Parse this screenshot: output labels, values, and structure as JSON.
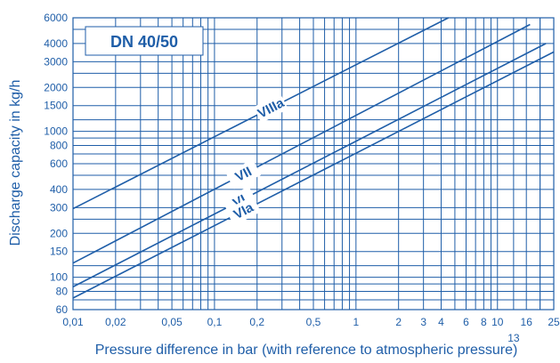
{
  "chart_data": {
    "type": "line",
    "title": "DN 40/50",
    "xlabel": "Pressure difference in bar (with reference to atmospheric pressure)",
    "ylabel": "Discharge capacity in kg/h",
    "x_scale": "log",
    "y_scale": "log",
    "xlim": [
      0.01,
      25
    ],
    "ylim": [
      60,
      6000
    ],
    "grid": true,
    "x_ticks": [
      {
        "value": 0.01,
        "label": "0,01"
      },
      {
        "value": 0.02,
        "label": "0,02"
      },
      {
        "value": 0.05,
        "label": "0,05"
      },
      {
        "value": 0.1,
        "label": "0,1"
      },
      {
        "value": 0.2,
        "label": "0,2"
      },
      {
        "value": 0.5,
        "label": "0,5"
      },
      {
        "value": 1,
        "label": "1"
      },
      {
        "value": 2,
        "label": "2"
      },
      {
        "value": 3,
        "label": "3"
      },
      {
        "value": 4,
        "label": "4"
      },
      {
        "value": 6,
        "label": "6"
      },
      {
        "value": 8,
        "label": "8"
      },
      {
        "value": 10,
        "label": "10"
      },
      {
        "value": 13,
        "label": "13"
      },
      {
        "value": 16,
        "label": "16"
      },
      {
        "value": 25,
        "label": "25"
      }
    ],
    "y_ticks": [
      {
        "value": 60,
        "label": "60"
      },
      {
        "value": 80,
        "label": "80"
      },
      {
        "value": 100,
        "label": "100"
      },
      {
        "value": 150,
        "label": "150"
      },
      {
        "value": 200,
        "label": "200"
      },
      {
        "value": 300,
        "label": "300"
      },
      {
        "value": 400,
        "label": "400"
      },
      {
        "value": 600,
        "label": "600"
      },
      {
        "value": 800,
        "label": "800"
      },
      {
        "value": 1000,
        "label": "1000"
      },
      {
        "value": 1500,
        "label": "1500"
      },
      {
        "value": 2000,
        "label": "2000"
      },
      {
        "value": 3000,
        "label": "3000"
      },
      {
        "value": 4000,
        "label": "4000"
      },
      {
        "value": 6000,
        "label": "6000"
      }
    ],
    "minor_y_gridlines": [
      70,
      90,
      120,
      250,
      500,
      700,
      900,
      1200,
      2500,
      5000
    ],
    "series": [
      {
        "name": "VIIIa",
        "x": [
          0.01,
          4.5
        ],
        "y": [
          295,
          6000
        ]
      },
      {
        "name": "VII",
        "x": [
          0.01,
          17
        ],
        "y": [
          125,
          5400
        ]
      },
      {
        "name": "VI",
        "x": [
          0.01,
          22
        ],
        "y": [
          86,
          4000
        ]
      },
      {
        "name": "VIa",
        "x": [
          0.01,
          25
        ],
        "y": [
          72,
          3500
        ]
      }
    ]
  },
  "colors": {
    "ink": "#1f5ea8",
    "grid": "#1f5ea8",
    "background": "#ffffff"
  }
}
